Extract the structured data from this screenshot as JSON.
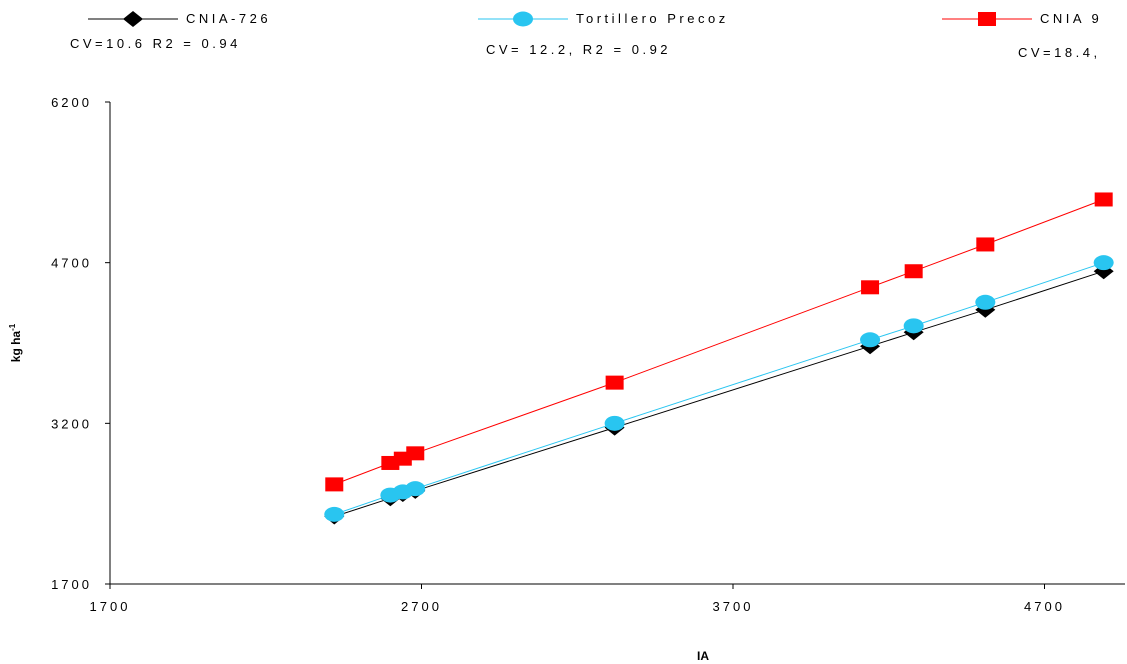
{
  "chart_data": {
    "type": "line",
    "title": "",
    "xlabel": "IA",
    "ylabel": "kg ha",
    "ylabel_superscript": "-1",
    "xlim": [
      1700,
      4900
    ],
    "ylim": [
      1700,
      6200
    ],
    "x_ticks": [
      "1700",
      "2700",
      "3700",
      "4700"
    ],
    "y_ticks": [
      "1700",
      "3200",
      "4700",
      "6200"
    ],
    "x_tick_values": [
      1700,
      2700,
      3700,
      4700
    ],
    "y_tick_values": [
      1700,
      3200,
      4700,
      6200
    ],
    "grid": false,
    "legend_position": "top",
    "series": [
      {
        "name": "CNIA-726",
        "stats": "CV=10.6  R2  = 0.94",
        "color": "#000000",
        "marker": "diamond",
        "x": [
          2420,
          2600,
          2640,
          2680,
          3320,
          4140,
          4280,
          4510,
          4890
        ],
        "y": [
          2330,
          2500,
          2540,
          2570,
          3160,
          3920,
          4050,
          4260,
          4620
        ]
      },
      {
        "name": "Tortillero Precoz",
        "stats": "CV= 12.2,  R2  = 0.92",
        "color": "#29c5f0",
        "marker": "circle",
        "x": [
          2420,
          2600,
          2640,
          2680,
          3320,
          4140,
          4280,
          4510,
          4890
        ],
        "y": [
          2350,
          2530,
          2560,
          2590,
          3200,
          3980,
          4110,
          4330,
          4700
        ]
      },
      {
        "name": "CNIA 9",
        "stats": "CV=18.4,",
        "color": "#ff0000",
        "marker": "square",
        "x": [
          2420,
          2600,
          2640,
          2680,
          3320,
          4140,
          4280,
          4510,
          4890
        ],
        "y": [
          2630,
          2830,
          2870,
          2920,
          3580,
          4470,
          4620,
          4870,
          5290
        ]
      }
    ]
  }
}
